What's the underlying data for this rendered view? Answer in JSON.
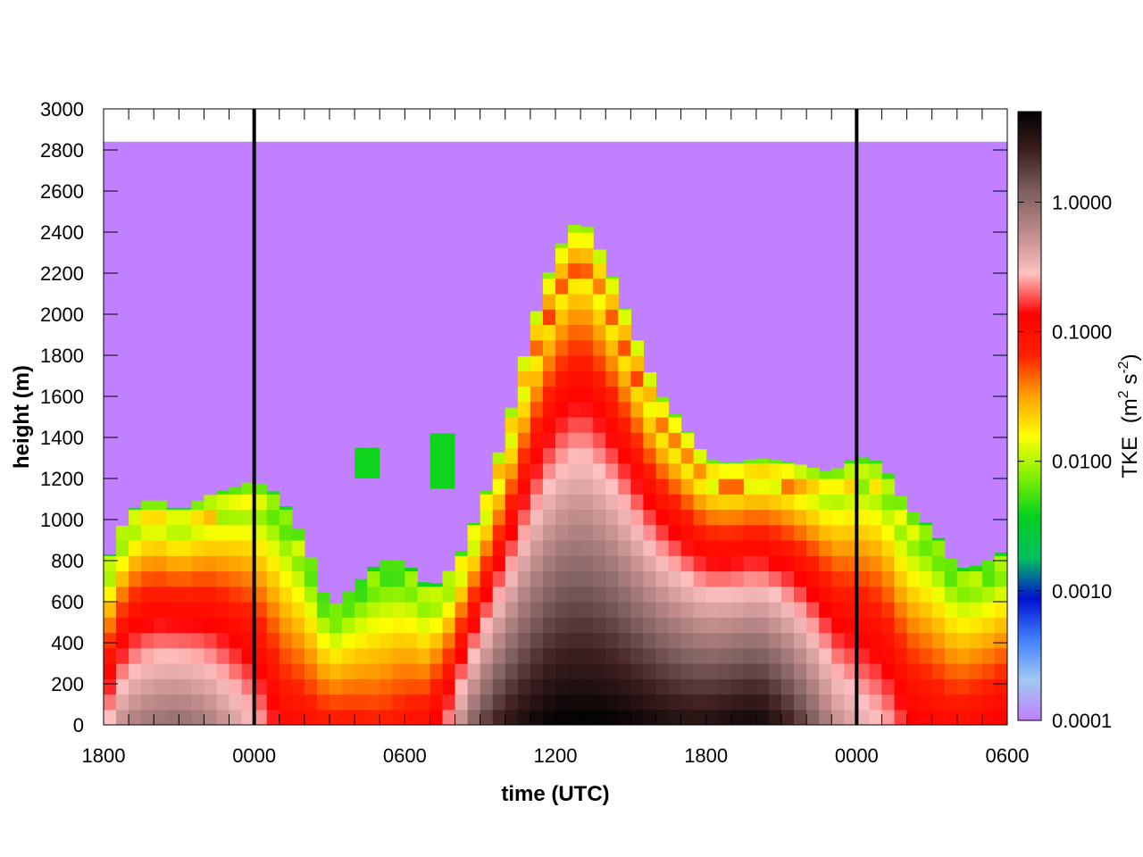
{
  "chart_data": {
    "type": "heatmap",
    "title": "",
    "xlabel": "time (UTC)",
    "ylabel": "height (m)",
    "colorbar_label": "TKE",
    "colorbar_unit_base": "(m",
    "colorbar_unit_exp1": "2",
    "colorbar_unit_mid": " s",
    "colorbar_unit_exp2": "-2",
    "colorbar_unit_end": ")",
    "x_ticks": [
      "1800",
      "0000",
      "0600",
      "1200",
      "1800",
      "0000",
      "0600"
    ],
    "x_range_hours": [
      0,
      36
    ],
    "x_tick_hours": [
      0,
      6,
      12,
      18,
      24,
      30,
      36
    ],
    "y_ticks": [
      "0",
      "200",
      "400",
      "600",
      "800",
      "1000",
      "1200",
      "1400",
      "1600",
      "1800",
      "2000",
      "2200",
      "2400",
      "2600",
      "2800",
      "3000"
    ],
    "ylim": [
      0,
      3000
    ],
    "colorbar_ticks": [
      "1.0000",
      "0.1000",
      "0.0100",
      "0.0010",
      "0.0001"
    ],
    "colorbar_tick_values": [
      1,
      0.1,
      0.01,
      0.001,
      0.0001
    ],
    "colorbar_range": [
      0.0001,
      5
    ],
    "colorbar_scale": "log",
    "data_top_m": 2840,
    "midnight_markers_hours": [
      6,
      30
    ],
    "bin_width_hours": 0.5,
    "bin_height_m": 75,
    "colormap": [
      "#c080ff",
      "#a0c8f0",
      "#4080ff",
      "#0010d0",
      "#00c060",
      "#00d020",
      "#80f000",
      "#ffff00",
      "#ffa000",
      "#ff2000",
      "#ff0000",
      "#ffc0c0",
      "#c08c8c",
      "#806060",
      "#402020",
      "#000000"
    ],
    "background_color": "#c080ff",
    "abl_top_profile": [
      {
        "t": 0,
        "top_m": 760,
        "peak": 0.2
      },
      {
        "t": 1,
        "top_m": 1040,
        "peak": 0.7
      },
      {
        "t": 2,
        "top_m": 1110,
        "peak": 0.9
      },
      {
        "t": 3,
        "top_m": 1040,
        "peak": 1.0
      },
      {
        "t": 4,
        "top_m": 1110,
        "peak": 0.8
      },
      {
        "t": 5,
        "top_m": 1150,
        "peak": 0.5
      },
      {
        "t": 6,
        "top_m": 1190,
        "peak": 0.3
      },
      {
        "t": 7,
        "top_m": 1120,
        "peak": 0.12
      },
      {
        "t": 8,
        "top_m": 900,
        "peak": 0.1
      },
      {
        "t": 9,
        "top_m": 560,
        "peak": 0.08
      },
      {
        "t": 10,
        "top_m": 680,
        "peak": 0.08
      },
      {
        "t": 11,
        "top_m": 800,
        "peak": 0.07
      },
      {
        "t": 12,
        "top_m": 800,
        "peak": 0.09
      },
      {
        "t": 13,
        "top_m": 660,
        "peak": 0.1
      },
      {
        "t": 14,
        "top_m": 780,
        "peak": 0.3
      },
      {
        "t": 15,
        "top_m": 1050,
        "peak": 1.5
      },
      {
        "t": 16,
        "top_m": 1420,
        "peak": 3.0
      },
      {
        "t": 17,
        "top_m": 1920,
        "peak": 4.0
      },
      {
        "t": 18,
        "top_m": 2300,
        "peak": 5.0
      },
      {
        "t": 19,
        "top_m": 2480,
        "peak": 5.0
      },
      {
        "t": 20,
        "top_m": 2260,
        "peak": 5.0
      },
      {
        "t": 21,
        "top_m": 1950,
        "peak": 4.5
      },
      {
        "t": 22,
        "top_m": 1640,
        "peak": 4.0
      },
      {
        "t": 23,
        "top_m": 1470,
        "peak": 3.5
      },
      {
        "t": 24,
        "top_m": 1300,
        "peak": 3.5
      },
      {
        "t": 25,
        "top_m": 1270,
        "peak": 4.0
      },
      {
        "t": 26,
        "top_m": 1300,
        "peak": 4.5
      },
      {
        "t": 27,
        "top_m": 1290,
        "peak": 3.0
      },
      {
        "t": 28,
        "top_m": 1260,
        "peak": 1.5
      },
      {
        "t": 29,
        "top_m": 1230,
        "peak": 0.6
      },
      {
        "t": 30,
        "top_m": 1310,
        "peak": 0.4
      },
      {
        "t": 31,
        "top_m": 1280,
        "peak": 0.3
      },
      {
        "t": 32,
        "top_m": 1060,
        "peak": 0.15
      },
      {
        "t": 33,
        "top_m": 960,
        "peak": 0.12
      },
      {
        "t": 34,
        "top_m": 760,
        "peak": 0.1
      },
      {
        "t": 35,
        "top_m": 780,
        "peak": 0.12
      },
      {
        "t": 36,
        "top_m": 860,
        "peak": 0.15
      }
    ],
    "isolated_patches": [
      {
        "t0": 10,
        "t1": 11,
        "z0": 1200,
        "z1": 1350,
        "value": 0.004
      },
      {
        "t0": 13,
        "t1": 14,
        "z0": 1150,
        "z1": 1420,
        "value": 0.004
      }
    ]
  }
}
